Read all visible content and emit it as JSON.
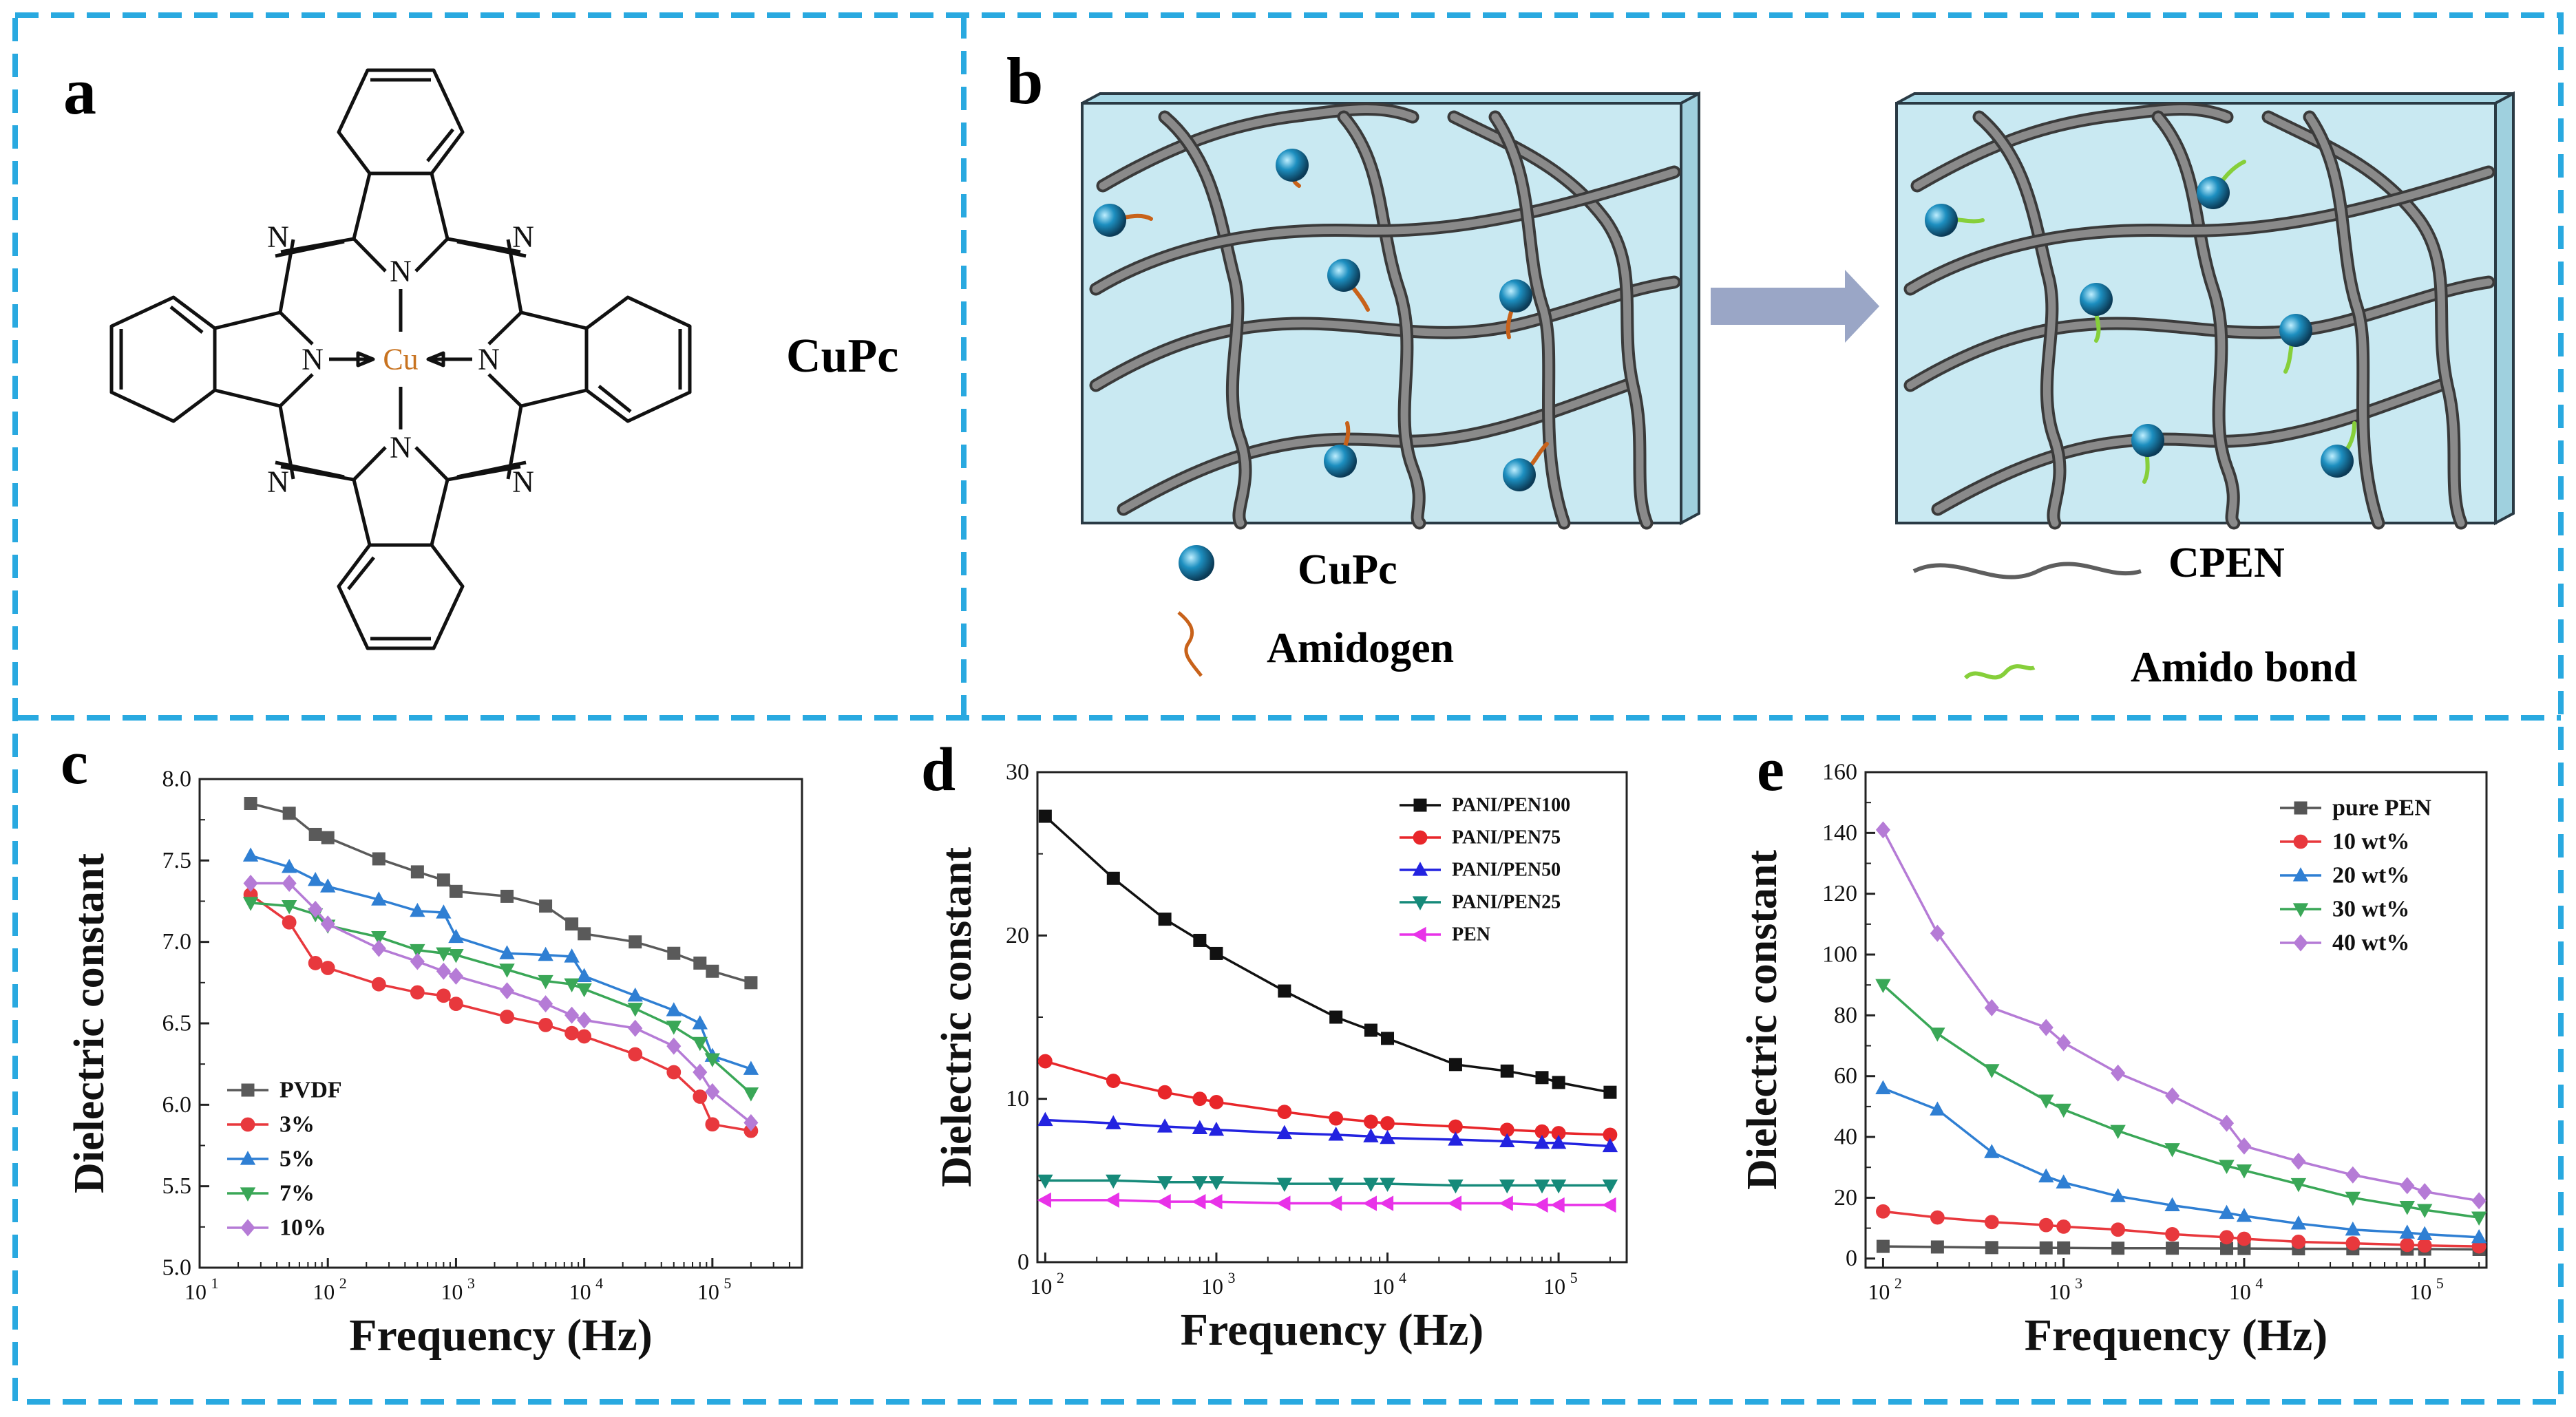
{
  "panels": {
    "a": {
      "letter": "a",
      "molecule_name": "CuPc",
      "atoms": {
        "nitrogen": "N",
        "copper": "Cu"
      }
    },
    "b": {
      "letter": "b",
      "legend": {
        "cupc_label": "CuPc",
        "amidogen_label": "Amidogen",
        "cpen_label": "CPEN",
        "amido_bond_label": "Amido bond"
      },
      "colors": {
        "matrix_fill": "#c9e9f2",
        "matrix_edge": "#2a3a44",
        "chain": "#5e5e5e",
        "sphere": "#1d8fc0",
        "amidogen": "#c8621a",
        "amido_bond": "#86cf3a",
        "arrow": "#9aa6c6"
      }
    },
    "c": {
      "letter": "c"
    },
    "d": {
      "letter": "d"
    },
    "e": {
      "letter": "e"
    }
  },
  "frame_color": "#29a9e0",
  "chart_data": [
    {
      "panel": "c",
      "type": "line",
      "xscale": "log",
      "xlabel": "Frequency (Hz)",
      "ylabel": "Dielectric constant",
      "xlim": [
        10,
        500000
      ],
      "ylim": [
        5.0,
        8.0
      ],
      "yticks": [
        "5.0",
        "5.5",
        "6.0",
        "6.5",
        "7.0",
        "7.5",
        "8.0"
      ],
      "xticks": [
        {
          "base": "10",
          "exp": "1"
        },
        {
          "base": "10",
          "exp": "2"
        },
        {
          "base": "10",
          "exp": "3"
        },
        {
          "base": "10",
          "exp": "4"
        },
        {
          "base": "10",
          "exp": "5"
        }
      ],
      "legend_position": "bottom-left",
      "x": [
        25,
        50,
        80,
        100,
        250,
        500,
        800,
        1000,
        2500,
        5000,
        8000,
        10000,
        25000,
        50000,
        80000,
        100000,
        200000
      ],
      "series": [
        {
          "name": "PVDF",
          "color": "#5a5a5a",
          "marker": "square",
          "values": [
            7.85,
            7.79,
            7.66,
            7.64,
            7.51,
            7.43,
            7.38,
            7.31,
            7.28,
            7.22,
            7.11,
            7.05,
            7.0,
            6.93,
            6.87,
            6.82,
            6.75
          ]
        },
        {
          "name": "3%",
          "color": "#e8383d",
          "marker": "circle",
          "values": [
            7.29,
            7.12,
            6.87,
            6.84,
            6.74,
            6.69,
            6.67,
            6.62,
            6.54,
            6.49,
            6.44,
            6.42,
            6.31,
            6.2,
            6.05,
            5.88,
            5.84
          ]
        },
        {
          "name": "5%",
          "color": "#2f7fd3",
          "marker": "triangle-up",
          "values": [
            7.53,
            7.46,
            7.38,
            7.34,
            7.26,
            7.19,
            7.18,
            7.03,
            6.93,
            6.92,
            6.91,
            6.79,
            6.67,
            6.58,
            6.5,
            6.3,
            6.22
          ]
        },
        {
          "name": "7%",
          "color": "#3aa757",
          "marker": "triangle-down",
          "values": [
            7.24,
            7.22,
            7.17,
            7.1,
            7.03,
            6.95,
            6.93,
            6.92,
            6.83,
            6.76,
            6.74,
            6.71,
            6.59,
            6.48,
            6.38,
            6.28,
            6.07
          ]
        },
        {
          "name": "10%",
          "color": "#b57bd6",
          "marker": "diamond",
          "values": [
            7.36,
            7.36,
            7.2,
            7.11,
            6.96,
            6.88,
            6.82,
            6.79,
            6.7,
            6.62,
            6.55,
            6.52,
            6.47,
            6.36,
            6.2,
            6.08,
            5.89
          ]
        }
      ]
    },
    {
      "panel": "d",
      "type": "line",
      "xscale": "log",
      "xlabel": "Frequency (Hz)",
      "ylabel": "Dielectric constant",
      "xlim": [
        90,
        250000
      ],
      "ylim": [
        0,
        30
      ],
      "yticks": [
        "0",
        "10",
        "20",
        "30"
      ],
      "xticks": [
        {
          "base": "10",
          "exp": "2"
        },
        {
          "base": "10",
          "exp": "3"
        },
        {
          "base": "10",
          "exp": "4"
        },
        {
          "base": "10",
          "exp": "5"
        }
      ],
      "legend_position": "top-right",
      "x": [
        100,
        250,
        500,
        800,
        1000,
        2500,
        5000,
        8000,
        10000,
        25000,
        50000,
        80000,
        100000,
        200000
      ],
      "series": [
        {
          "name": "PANI/PEN100",
          "color": "#111111",
          "marker": "square",
          "values": [
            27.3,
            23.5,
            21.0,
            19.7,
            18.9,
            16.6,
            15.0,
            14.2,
            13.7,
            12.1,
            11.7,
            11.3,
            11.0,
            10.4
          ]
        },
        {
          "name": "PANI/PEN75",
          "color": "#e8262a",
          "marker": "circle",
          "values": [
            12.3,
            11.1,
            10.4,
            10.0,
            9.8,
            9.2,
            8.8,
            8.6,
            8.5,
            8.3,
            8.1,
            8.0,
            7.9,
            7.8
          ]
        },
        {
          "name": "PANI/PEN50",
          "color": "#2323e0",
          "marker": "triangle-up",
          "values": [
            8.7,
            8.5,
            8.3,
            8.2,
            8.1,
            7.9,
            7.8,
            7.7,
            7.6,
            7.5,
            7.4,
            7.3,
            7.3,
            7.1
          ]
        },
        {
          "name": "PANI/PEN25",
          "color": "#168a7a",
          "marker": "triangle-down",
          "values": [
            5.0,
            5.0,
            4.9,
            4.9,
            4.9,
            4.8,
            4.8,
            4.8,
            4.8,
            4.7,
            4.7,
            4.7,
            4.7,
            4.7
          ]
        },
        {
          "name": "PEN",
          "color": "#e832e8",
          "marker": "triangle-left",
          "values": [
            3.8,
            3.8,
            3.7,
            3.7,
            3.7,
            3.6,
            3.6,
            3.6,
            3.6,
            3.6,
            3.6,
            3.5,
            3.5,
            3.5
          ]
        }
      ]
    },
    {
      "panel": "e",
      "type": "line",
      "xscale": "log",
      "xlabel": "Frequency (Hz)",
      "ylabel": "Dielectric constant",
      "xlim": [
        80,
        220000
      ],
      "ylim": [
        -3,
        160
      ],
      "yticks": [
        "0",
        "20",
        "40",
        "60",
        "80",
        "100",
        "120",
        "140",
        "160"
      ],
      "xticks": [
        {
          "base": "10",
          "exp": "2"
        },
        {
          "base": "10",
          "exp": "3"
        },
        {
          "base": "10",
          "exp": "4"
        },
        {
          "base": "10",
          "exp": "5"
        }
      ],
      "legend_position": "top-right",
      "x": [
        100,
        200,
        400,
        800,
        1000,
        2000,
        4000,
        8000,
        10000,
        20000,
        40000,
        80000,
        100000,
        200000
      ],
      "series": [
        {
          "name": "pure PEN",
          "color": "#555555",
          "marker": "square",
          "values": [
            4,
            3.8,
            3.6,
            3.5,
            3.5,
            3.4,
            3.4,
            3.3,
            3.3,
            3.2,
            3.2,
            3.1,
            3.1,
            3.0
          ]
        },
        {
          "name": "10 wt%",
          "color": "#e8383d",
          "marker": "circle",
          "values": [
            15.5,
            13.5,
            12,
            11,
            10.5,
            9.5,
            8,
            7,
            6.5,
            5.5,
            5,
            4.5,
            4.3,
            4
          ]
        },
        {
          "name": "20 wt%",
          "color": "#2f7fd3",
          "marker": "triangle-up",
          "values": [
            56,
            49,
            35,
            27,
            25,
            20.5,
            17.5,
            15,
            14,
            11.5,
            9.5,
            8.5,
            8,
            7
          ]
        },
        {
          "name": "30 wt%",
          "color": "#3aa757",
          "marker": "triangle-down",
          "values": [
            90,
            74,
            62,
            52,
            49,
            42,
            36,
            30.5,
            29,
            24.5,
            20,
            17,
            16,
            13.5
          ]
        },
        {
          "name": "40 wt%",
          "color": "#b57bd6",
          "marker": "diamond",
          "values": [
            141,
            107,
            82.5,
            76,
            71,
            61,
            53.5,
            44.5,
            37,
            32,
            27.5,
            24,
            22,
            19
          ]
        }
      ]
    }
  ]
}
